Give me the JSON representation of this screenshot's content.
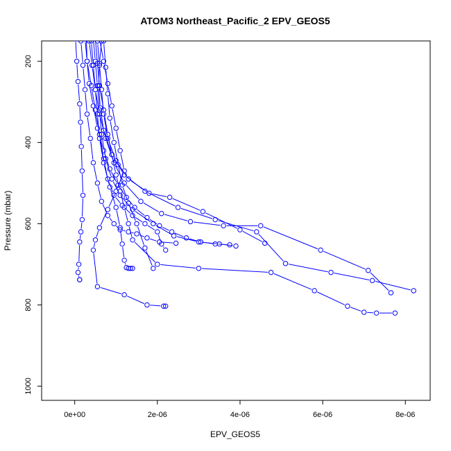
{
  "chart_data": {
    "type": "line",
    "title": "ATOM3 Northeast_Pacific_2 EPV_GEOS5",
    "xlabel": "EPV_GEOS5",
    "ylabel": "Pressure (mbar)",
    "xlim": [
      -8e-07,
      8.6e-06
    ],
    "ylim": [
      1035,
      150
    ],
    "y_reversed": true,
    "x_ticks": [
      0,
      2e-06,
      4e-06,
      6e-06,
      8e-06
    ],
    "x_tick_labels": [
      "0e+00",
      "2e-06",
      "4e-06",
      "6e-06",
      "8e-06"
    ],
    "y_ticks": [
      200,
      400,
      600,
      800,
      1000
    ],
    "y_tick_labels": [
      "200",
      "400",
      "600",
      "800",
      "1000"
    ],
    "grid": false,
    "line_color": "#0000ff",
    "series": [
      {
        "x": [
          2e-08,
          5e-08,
          8e-08,
          1.2e-07,
          1.4e-07,
          1.6e-07,
          1.8e-07,
          2e-07,
          1.8e-07,
          1.5e-07,
          1.2e-07,
          1e-07,
          8e-08,
          1.2e-07,
          1.2e-07
        ],
        "y": [
          145,
          200,
          250,
          305,
          350,
          410,
          470,
          530,
          590,
          620,
          645,
          700,
          720,
          738,
          738
        ]
      },
      {
        "x": [
          2.8e-07,
          3e-07,
          3.5e-07,
          4.5e-07,
          5.5e-07,
          7e-07,
          8.5e-07,
          1.05e-06,
          1.25e-06,
          1.45e-06,
          1.75e-06,
          2.05e-06,
          2.35e-06,
          2.7e-06,
          3.05e-06,
          3.4e-06,
          3.75e-06
        ],
        "y": [
          140,
          200,
          255,
          310,
          365,
          420,
          465,
          505,
          535,
          560,
          585,
          605,
          620,
          635,
          645,
          650,
          652
        ]
      },
      {
        "x": [
          4.5e-07,
          5e-07,
          5.5e-07,
          6e-07,
          6.5e-07,
          7.5e-07,
          9e-07,
          1.1e-06,
          1.4e-06,
          1.9e-06,
          2.4e-06,
          3e-06,
          3.5e-06,
          3.9e-06
        ],
        "y": [
          145,
          200,
          260,
          320,
          380,
          440,
          490,
          530,
          565,
          600,
          630,
          645,
          650,
          655
        ]
      },
      {
        "x": [
          3.5e-07,
          4.2e-07,
          5e-07,
          6e-07,
          7.5e-07,
          9.5e-07,
          1.2e-06,
          1.6e-06,
          2.1e-06,
          2.8e-06,
          3.6e-06,
          4.5e-06,
          5.95e-06,
          7.1e-06,
          7.65e-06
        ],
        "y": [
          150,
          210,
          270,
          330,
          390,
          450,
          500,
          545,
          575,
          595,
          605,
          605,
          665,
          715,
          770
        ]
      },
      {
        "x": [
          5.5e-07,
          6e-07,
          6.5e-07,
          7e-07,
          8e-07,
          1e-06,
          1.3e-06,
          1.8e-06,
          2.3e-06,
          3.1e-06,
          4e-06,
          4.6e-06
        ],
        "y": [
          150,
          210,
          270,
          330,
          390,
          445,
          490,
          525,
          535,
          570,
          615,
          648
        ]
      },
      {
        "x": [
          6.5e-07,
          6e-07,
          5.8e-07,
          6.2e-07,
          7e-07,
          9e-07,
          1.2e-06,
          1.7e-06,
          2.5e-06,
          3.4e-06,
          4.4e-06,
          5.1e-06,
          6.2e-06,
          7.2e-06,
          8.2e-06
        ],
        "y": [
          150,
          205,
          260,
          315,
          370,
          430,
          480,
          520,
          560,
          590,
          620,
          698,
          720,
          740,
          765
        ]
      },
      {
        "x": [
          2.5e-07,
          3e-07,
          4e-07,
          5e-07,
          6e-07,
          7e-07,
          8e-07,
          9.5e-07,
          1.15e-06,
          1.4e-06,
          1.7e-06,
          2e-06,
          2.1e-06,
          2.2e-06
        ],
        "y": [
          145,
          200,
          260,
          320,
          380,
          440,
          490,
          530,
          555,
          580,
          600,
          620,
          650,
          665
        ]
      },
      {
        "x": [
          6e-07,
          7e-07,
          8e-07,
          9e-07,
          1e-06,
          1.1e-06,
          1.2e-06,
          1e-06,
          8e-07,
          6e-07,
          5e-07,
          4.5e-07,
          5.5e-07,
          1.2e-06,
          1.75e-06,
          2.15e-06,
          2.2e-06
        ],
        "y": [
          145,
          200,
          255,
          310,
          365,
          420,
          470,
          520,
          565,
          610,
          640,
          665,
          755,
          775,
          800,
          803,
          803
        ]
      },
      {
        "x": [
          5e-07,
          5.5e-07,
          6e-07,
          7e-07,
          8e-07,
          9e-07,
          1e-06,
          1.1e-06,
          1.2e-06,
          1.3e-06,
          1.4e-06,
          2e-06,
          3e-06,
          4.75e-06,
          5.8e-06,
          6.6e-06,
          7e-06,
          7.3e-06,
          7.75e-06
        ],
        "y": [
          145,
          205,
          260,
          320,
          380,
          430,
          480,
          520,
          560,
          600,
          640,
          700,
          710,
          720,
          765,
          803,
          818,
          820,
          820
        ]
      },
      {
        "x": [
          4e-07,
          4.5e-07,
          5e-07,
          5.5e-07,
          6e-07,
          7e-07,
          8.5e-07,
          1e-06,
          1.1e-06,
          1.15e-06,
          1.2e-06,
          1.25e-06,
          1.3e-06,
          1.35e-06,
          1.4e-06
        ],
        "y": [
          150,
          210,
          270,
          330,
          390,
          450,
          510,
          560,
          610,
          650,
          690,
          708,
          710,
          710,
          710
        ]
      },
      {
        "x": [
          7e-07,
          7.5e-07,
          8e-07,
          8.5e-07,
          9.5e-07,
          1.05e-06,
          1.15e-06,
          1.3e-06,
          1.5e-06,
          1.7e-06,
          1.9e-06
        ],
        "y": [
          150,
          215,
          280,
          340,
          400,
          455,
          505,
          550,
          600,
          660,
          710
        ]
      },
      {
        "x": [
          1.5e-07,
          2e-07,
          2.5e-07,
          3e-07,
          3.8e-07,
          4.5e-07,
          5.5e-07,
          6.5e-07,
          8e-07,
          9.5e-07,
          1.1e-06,
          1.3e-06,
          1.5e-06,
          1.75e-06,
          2.05e-06,
          2.45e-06
        ],
        "y": [
          150,
          210,
          270,
          330,
          390,
          450,
          500,
          545,
          580,
          600,
          615,
          620,
          625,
          635,
          645,
          648
        ]
      }
    ]
  }
}
